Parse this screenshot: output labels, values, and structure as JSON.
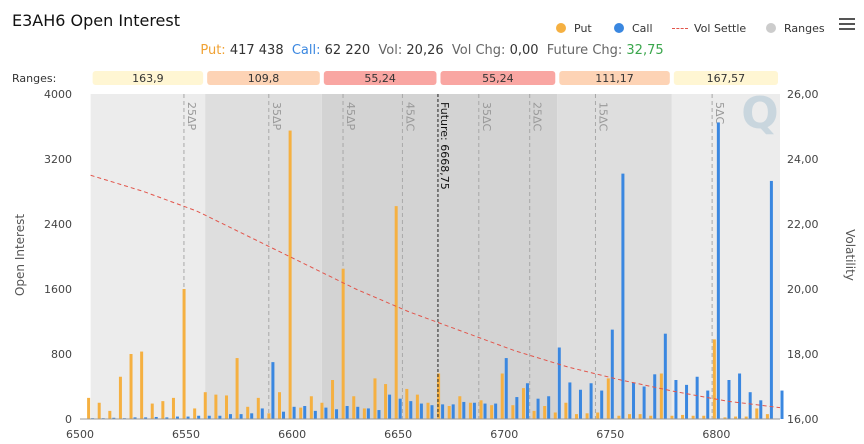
{
  "title": "E3AH6 Open Interest",
  "legend": {
    "put": "Put",
    "call": "Call",
    "vol_settle": "Vol Settle",
    "ranges": "Ranges",
    "colors": {
      "put": "#f5b041",
      "call": "#3a87e0",
      "vol": "#e2554b",
      "ranges": "#cccccc"
    }
  },
  "menu_icon": "hamburger-menu-icon",
  "stats": {
    "put_label": "Put:",
    "put_value": "417 438",
    "call_label": "Call:",
    "call_value": "62 220",
    "vol_label": "Vol:",
    "vol_value": "20,26",
    "volchg_label": "Vol Chg:",
    "volchg_value": "0,00",
    "futchg_label": "Future Chg:",
    "futchg_value": "32,75"
  },
  "ranges_label": "Ranges:",
  "watermark": "Q",
  "chart_data": {
    "type": "bar",
    "xlabel": "",
    "ylabel": "Open Interest",
    "y2label": "Volatility",
    "xlim": [
      6500,
      6830
    ],
    "ylim": [
      0,
      4000
    ],
    "y2lim": [
      16,
      26
    ],
    "xticks": [
      6500,
      6550,
      6600,
      6650,
      6700,
      6750,
      6800
    ],
    "yticks": [
      "0",
      "800",
      "1600",
      "2400",
      "3200",
      "4000"
    ],
    "y2ticks": [
      "16,00",
      "18,00",
      "20,00",
      "22,00",
      "24,00",
      "26,00"
    ],
    "ranges": [
      {
        "from": 6505,
        "to": 6559,
        "label": "163,9",
        "color": "#fff6d3",
        "shade": "#ececec"
      },
      {
        "from": 6559,
        "to": 6614,
        "label": "109,8",
        "color": "#fdd3b5",
        "shade": "#dedede"
      },
      {
        "from": 6614,
        "to": 6669,
        "label": "55,24",
        "color": "#f9a6a2",
        "shade": "#d3d3d3"
      },
      {
        "from": 6669,
        "to": 6725,
        "label": "55,24",
        "color": "#f9a6a2",
        "shade": "#d3d3d3"
      },
      {
        "from": 6725,
        "to": 6779,
        "label": "111,17",
        "color": "#fdd3b5",
        "shade": "#dedede"
      },
      {
        "from": 6779,
        "to": 6832,
        "label": "167,57",
        "color": "#fff6d3",
        "shade": "#ececec"
      }
    ],
    "delta_lines": [
      {
        "x": 6549,
        "label": "25ΔP"
      },
      {
        "x": 6589,
        "label": "35ΔP"
      },
      {
        "x": 6624,
        "label": "45ΔP"
      },
      {
        "x": 6652,
        "label": "45ΔC"
      },
      {
        "x": 6688,
        "label": "35ΔC"
      },
      {
        "x": 6712,
        "label": "25ΔC"
      },
      {
        "x": 6743,
        "label": "15ΔC"
      },
      {
        "x": 6798,
        "label": "5ΔC"
      }
    ],
    "future": {
      "x": 6668.75,
      "label": "Future: 6668,75"
    },
    "series": [
      {
        "name": "Put",
        "color": "#f5b041",
        "x": [
          6505,
          6510,
          6515,
          6520,
          6525,
          6530,
          6535,
          6540,
          6545,
          6550,
          6555,
          6560,
          6565,
          6570,
          6575,
          6580,
          6585,
          6590,
          6595,
          6600,
          6605,
          6610,
          6615,
          6620,
          6625,
          6630,
          6635,
          6640,
          6645,
          6650,
          6655,
          6660,
          6665,
          6670,
          6675,
          6680,
          6685,
          6690,
          6695,
          6700,
          6705,
          6710,
          6715,
          6720,
          6725,
          6730,
          6735,
          6740,
          6745,
          6750,
          6755,
          6760,
          6765,
          6770,
          6775,
          6780,
          6785,
          6790,
          6795,
          6800,
          6805,
          6810,
          6815,
          6820,
          6825
        ],
        "values": [
          260,
          200,
          100,
          520,
          800,
          830,
          190,
          220,
          260,
          1600,
          130,
          330,
          300,
          290,
          750,
          150,
          260,
          70,
          330,
          3550,
          140,
          280,
          200,
          480,
          1850,
          280,
          130,
          500,
          430,
          2620,
          370,
          300,
          200,
          560,
          160,
          280,
          200,
          230,
          170,
          560,
          170,
          380,
          100,
          160,
          80,
          200,
          60,
          70,
          80,
          500,
          40,
          60,
          60,
          40,
          560,
          40,
          50,
          40,
          40,
          980,
          20,
          30,
          30,
          130,
          60
        ]
      },
      {
        "name": "Call",
        "color": "#3a87e0",
        "x": [
          6505,
          6510,
          6515,
          6520,
          6525,
          6530,
          6535,
          6540,
          6545,
          6550,
          6555,
          6560,
          6565,
          6570,
          6575,
          6580,
          6585,
          6590,
          6595,
          6600,
          6605,
          6610,
          6615,
          6620,
          6625,
          6630,
          6635,
          6640,
          6645,
          6650,
          6655,
          6660,
          6665,
          6670,
          6675,
          6680,
          6685,
          6690,
          6695,
          6700,
          6705,
          6710,
          6715,
          6720,
          6725,
          6730,
          6735,
          6740,
          6745,
          6750,
          6755,
          6760,
          6765,
          6770,
          6775,
          6780,
          6785,
          6790,
          6795,
          6800,
          6805,
          6810,
          6815,
          6820,
          6825,
          6830
        ],
        "values": [
          10,
          10,
          15,
          10,
          20,
          20,
          25,
          20,
          30,
          30,
          40,
          40,
          40,
          60,
          60,
          70,
          130,
          700,
          90,
          150,
          160,
          100,
          140,
          120,
          160,
          150,
          130,
          110,
          300,
          250,
          220,
          190,
          170,
          180,
          180,
          210,
          200,
          190,
          190,
          750,
          270,
          440,
          250,
          280,
          880,
          450,
          360,
          440,
          350,
          1100,
          3020,
          450,
          400,
          550,
          1050,
          480,
          420,
          520,
          350,
          3650,
          480,
          560,
          330,
          230,
          2930,
          350
        ]
      }
    ],
    "vol_settle": {
      "name": "Vol Settle",
      "color": "#e2554b",
      "x": [
        6505,
        6530,
        6555,
        6580,
        6605,
        6630,
        6655,
        6680,
        6705,
        6730,
        6755,
        6780,
        6805,
        6830
      ],
      "y": [
        23.5,
        23.0,
        22.4,
        21.6,
        20.8,
        20.0,
        19.3,
        18.7,
        18.1,
        17.6,
        17.2,
        16.85,
        16.55,
        16.35
      ]
    }
  }
}
